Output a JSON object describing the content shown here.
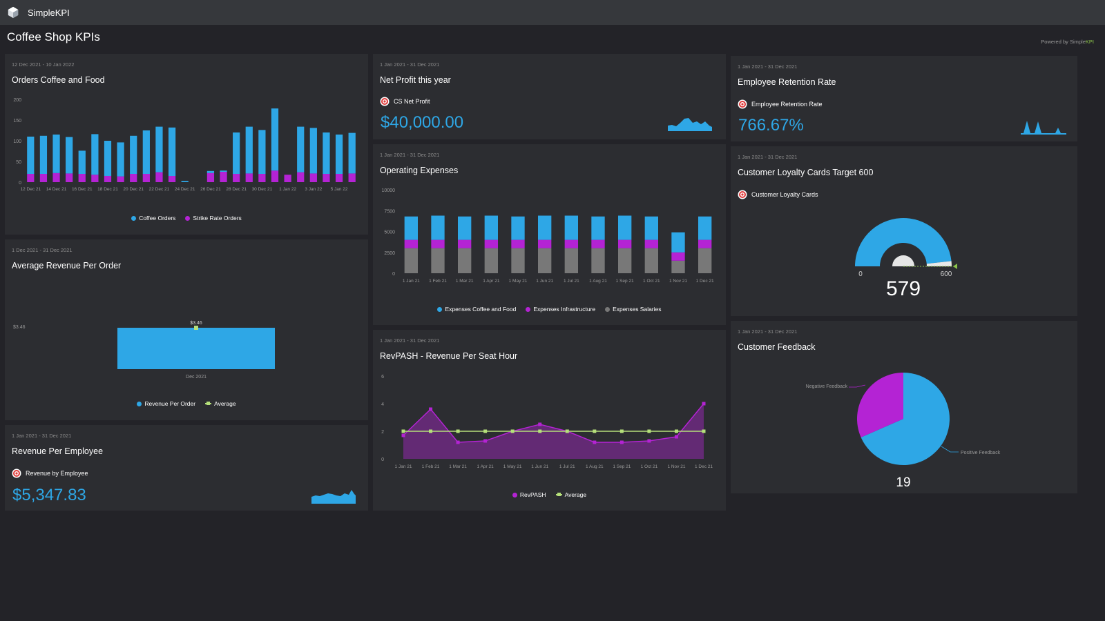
{
  "app": {
    "brand": "SimpleKPI",
    "page_title": "Coffee Shop KPIs",
    "powered_prefix": "Powered by ",
    "powered_simple": "Simple",
    "powered_kpi": "KPI"
  },
  "colors": {
    "blue": "#2ea7e6",
    "purple": "#b423d4",
    "gray": "#787878",
    "avg": "#b5e07a"
  },
  "orders": {
    "date": "12 Dec 2021 - 10 Jan 2022",
    "title": "Orders Coffee and Food",
    "legend": [
      "Coffee Orders",
      "Strike Rate Orders"
    ]
  },
  "avg_revenue": {
    "date": "1 Dec 2021 - 31 Dec 2021",
    "title": "Average Revenue Per Order",
    "legend": [
      "Revenue Per Order",
      "Average"
    ]
  },
  "rev_employee": {
    "date": "1 Jan 2021 - 31 Dec 2021",
    "title": "Revenue Per Employee",
    "kpi_name": "Revenue by Employee",
    "value": "$5,347.83",
    "icon": "target-icon"
  },
  "net_profit": {
    "date": "1 Jan 2021 - 31 Dec 2021",
    "title": "Net Profit this year",
    "kpi_name": "CS Net Profit",
    "value": "$40,000.00",
    "icon": "target-icon"
  },
  "op_expenses": {
    "date": "1 Jan 2021 - 31 Dec 2021",
    "title": "Operating Expenses",
    "legend": [
      "Expenses Coffee and Food",
      "Expenses Infrastructure",
      "Expenses Salaries"
    ]
  },
  "revpash": {
    "date": "1 Jan 2021 - 31 Dec 2021",
    "title": "RevPASH - Revenue Per Seat Hour",
    "legend": [
      "RevPASH",
      "Average"
    ]
  },
  "retention": {
    "date": "1 Jan 2021 - 31 Dec 2021",
    "title": "Employee Retention Rate",
    "kpi_name": "Employee Retention Rate",
    "value": "766.67%",
    "icon": "target-icon"
  },
  "loyalty": {
    "date": "1 Jan 2021 - 31 Dec 2021",
    "title": "Customer Loyalty Cards Target 600",
    "kpi_name": "Customer Loyalty Cards",
    "value": 579,
    "min": 0,
    "max": 600,
    "icon": "target-icon"
  },
  "feedback": {
    "date": "1 Jan 2021 - 31 Dec 2021",
    "title": "Customer Feedback",
    "total": "19"
  },
  "chart_data": [
    {
      "id": "orders",
      "type": "bar",
      "stacked": true,
      "categories": [
        "12 Dec 21",
        "13 Dec 21",
        "14 Dec 21",
        "15 Dec 21",
        "16 Dec 21",
        "17 Dec 21",
        "18 Dec 21",
        "19 Dec 21",
        "20 Dec 21",
        "21 Dec 21",
        "22 Dec 21",
        "23 Dec 21",
        "24 Dec 21",
        "25 Dec 21",
        "26 Dec 21",
        "27 Dec 21",
        "28 Dec 21",
        "29 Dec 21",
        "30 Dec 21",
        "31 Dec 21",
        "1 Jan 22",
        "2 Jan 22",
        "3 Jan 22",
        "4 Jan 22",
        "5 Jan 22",
        "6 Jan 22"
      ],
      "tick_labels": [
        "12 Dec 21",
        "",
        "14 Dec 21",
        "",
        "16 Dec 21",
        "",
        "18 Dec 21",
        "",
        "20 Dec 21",
        "",
        "22 Dec 21",
        "",
        "24 Dec 21",
        "",
        "26 Dec 21",
        "",
        "28 Dec 21",
        "",
        "30 Dec 21",
        "",
        "1 Jan 22",
        "",
        "3 Jan 22",
        "",
        "5 Jan 22",
        ""
      ],
      "series": [
        {
          "name": "Coffee Orders",
          "values": [
            90,
            92,
            93,
            88,
            56,
            98,
            85,
            82,
            92,
            105,
            110,
            117,
            3,
            0,
            5,
            3,
            100,
            113,
            106,
            150,
            0,
            110,
            110,
            100,
            95,
            98
          ]
        },
        {
          "name": "Strike Rate Orders",
          "values": [
            20,
            20,
            22,
            21,
            20,
            18,
            15,
            14,
            20,
            20,
            24,
            15,
            0,
            0,
            22,
            25,
            20,
            21,
            20,
            28,
            18,
            24,
            21,
            20,
            20,
            21
          ]
        }
      ],
      "yticks": [
        0,
        50,
        100,
        150,
        200
      ],
      "ylim": [
        0,
        200
      ]
    },
    {
      "id": "avg_revenue",
      "type": "bar",
      "categories": [
        "Dec 2021"
      ],
      "series": [
        {
          "name": "Revenue Per Order",
          "values": [
            3.46
          ]
        },
        {
          "name": "Average",
          "values": [
            3.46
          ]
        }
      ],
      "data_labels": [
        "$3.46"
      ],
      "ytick_label": "$3.46"
    },
    {
      "id": "op_expenses",
      "type": "bar",
      "stacked": true,
      "categories": [
        "1 Jan 21",
        "1 Feb 21",
        "1 Mar 21",
        "1 Apr 21",
        "1 May 21",
        "1 Jun 21",
        "1 Jul 21",
        "1 Aug 21",
        "1 Sep 21",
        "1 Oct 21",
        "1 Nov 21",
        "1 Dec 21"
      ],
      "series": [
        {
          "name": "Expenses Salaries",
          "values": [
            3000,
            3000,
            3000,
            3000,
            3000,
            3000,
            3000,
            3000,
            3000,
            3000,
            1500,
            3000
          ]
        },
        {
          "name": "Expenses Infrastructure",
          "values": [
            1000,
            1000,
            1000,
            1000,
            1000,
            1000,
            1000,
            1000,
            1000,
            1000,
            1000,
            1000
          ]
        },
        {
          "name": "Expenses Coffee and Food",
          "values": [
            2800,
            2900,
            2800,
            2900,
            2800,
            2900,
            2900,
            2800,
            2900,
            2800,
            2400,
            2800
          ]
        }
      ],
      "yticks": [
        0,
        2500,
        5000,
        7500,
        10000
      ],
      "ylim": [
        0,
        10000
      ]
    },
    {
      "id": "revpash",
      "type": "area",
      "categories": [
        "1 Jan 21",
        "1 Feb 21",
        "1 Mar 21",
        "1 Apr 21",
        "1 May 21",
        "1 Jun 21",
        "1 Jul 21",
        "1 Aug 21",
        "1 Sep 21",
        "1 Oct 21",
        "1 Nov 21",
        "1 Dec 21"
      ],
      "series": [
        {
          "name": "RevPASH",
          "values": [
            1.7,
            3.6,
            1.2,
            1.3,
            2.0,
            2.5,
            2.0,
            1.2,
            1.2,
            1.3,
            1.6,
            4.0
          ]
        },
        {
          "name": "Average",
          "values": [
            2.0,
            2.0,
            2.0,
            2.0,
            2.0,
            2.0,
            2.0,
            2.0,
            2.0,
            2.0,
            2.0,
            2.0
          ]
        }
      ],
      "yticks": [
        0,
        2,
        4,
        6
      ],
      "ylim": [
        0,
        6
      ]
    },
    {
      "id": "feedback",
      "type": "pie",
      "labels": [
        "Negative Feedback",
        "Positive Feedback"
      ],
      "values": [
        6,
        13
      ],
      "colors": [
        "#b423d4",
        "#2ea7e6"
      ]
    }
  ]
}
